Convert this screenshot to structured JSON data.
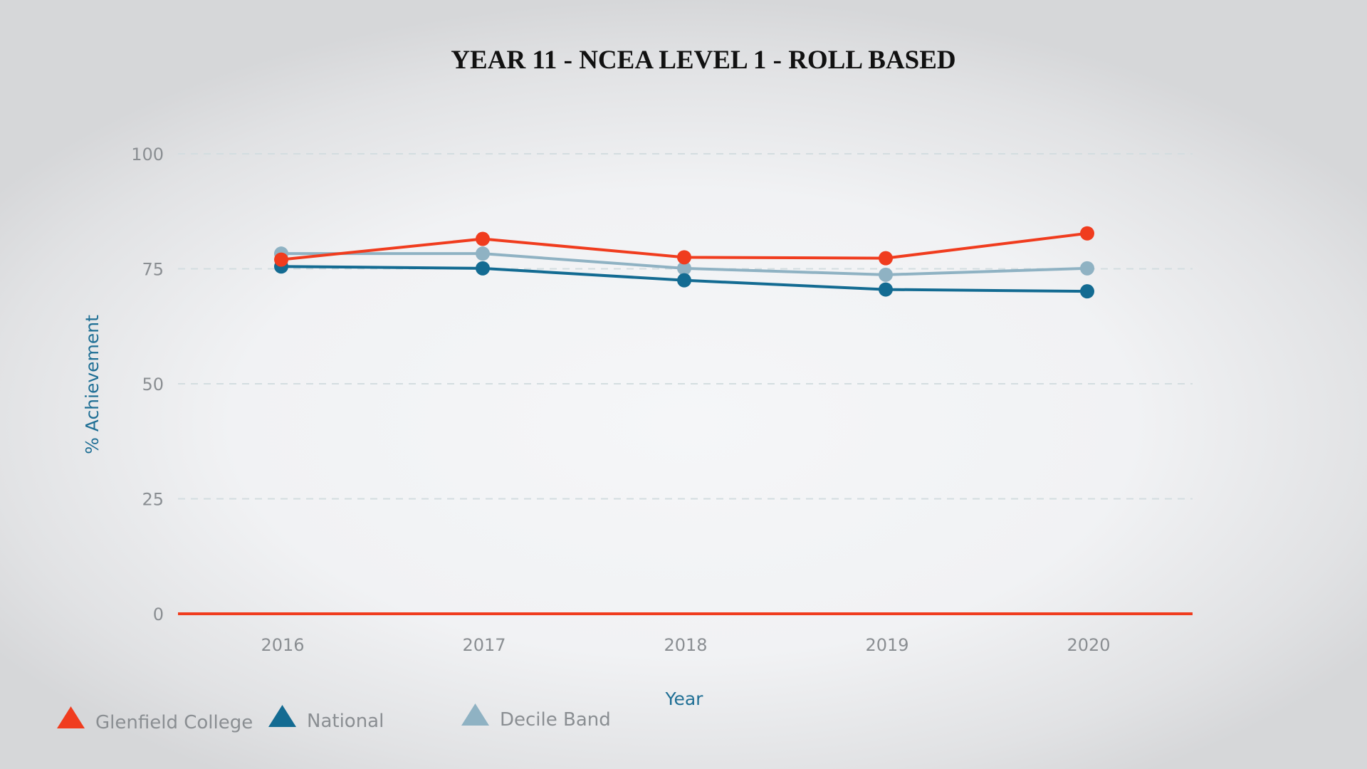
{
  "chart_data": {
    "type": "line",
    "title": "YEAR 11 - NCEA LEVEL 1 - ROLL BASED",
    "xlabel": "Year",
    "ylabel": "% Achievement",
    "categories": [
      "2016",
      "2017",
      "2018",
      "2019",
      "2020"
    ],
    "yticks": [
      0,
      25,
      50,
      75,
      100
    ],
    "ylim": [
      0,
      100
    ],
    "grid": true,
    "legend_position": "bottom-left",
    "series": [
      {
        "name": "Glenfield College",
        "color": "#f03c1e",
        "values": [
          77,
          81.5,
          77.5,
          77.3,
          82.7
        ]
      },
      {
        "name": "National",
        "color": "#136b92",
        "values": [
          75.5,
          75.1,
          72.5,
          70.5,
          70.1
        ]
      },
      {
        "name": "Decile Band",
        "color": "#8fb2c3",
        "values": [
          78.3,
          78.3,
          75.1,
          73.7,
          75.1
        ]
      }
    ]
  }
}
